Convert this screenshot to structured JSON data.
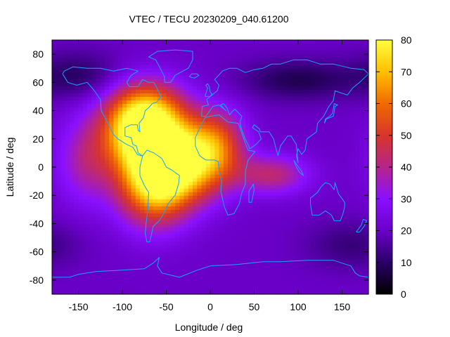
{
  "chart_data": {
    "type": "heatmap",
    "title": "VTEC / TECU 20230209_040.61200",
    "xlabel": "Longitude / deg",
    "ylabel": "Latitude / deg",
    "xlim": [
      -180,
      180
    ],
    "ylim": [
      -90,
      90
    ],
    "x_ticks": [
      -150,
      -100,
      -50,
      0,
      50,
      100,
      150
    ],
    "y_ticks": [
      -80,
      -60,
      -40,
      -20,
      0,
      20,
      40,
      60,
      80
    ],
    "colorbar": {
      "range": [
        0,
        80
      ],
      "ticks": [
        0,
        10,
        20,
        30,
        40,
        50,
        60,
        70,
        80
      ],
      "palette": [
        "#000000",
        "#2a0066",
        "#6a00c8",
        "#8a10ff",
        "#b5258a",
        "#d8352a",
        "#f06a00",
        "#ffc000",
        "#ffff40"
      ]
    },
    "background_vtec": 20,
    "vtec_features": [
      {
        "name": "equatorial-anomaly-peak-south-america",
        "lon": -65,
        "lat": -8,
        "vtec": 75
      },
      {
        "name": "equatorial-anomaly-peak-atlantic",
        "lon": -30,
        "lat": 5,
        "vtec": 72
      },
      {
        "name": "northern-crest-mexico",
        "lon": -85,
        "lat": 25,
        "vtec": 60
      },
      {
        "name": "north-atlantic-extension",
        "lon": -70,
        "lat": 40,
        "vtec": 55
      },
      {
        "name": "west-africa-extension",
        "lon": 10,
        "lat": 15,
        "vtec": 48
      },
      {
        "name": "indian-ocean-tongue",
        "lon": 70,
        "lat": -5,
        "vtec": 42
      },
      {
        "name": "east-pacific-extension",
        "lon": -140,
        "lat": 5,
        "vtec": 38
      },
      {
        "name": "siberia-minimum",
        "lon": 100,
        "lat": 62,
        "vtec": 8
      },
      {
        "name": "canada-minimum",
        "lon": -150,
        "lat": 65,
        "vtec": 10
      },
      {
        "name": "south-pacific-minimum",
        "lon": 160,
        "lat": -55,
        "vtec": 12
      }
    ]
  }
}
